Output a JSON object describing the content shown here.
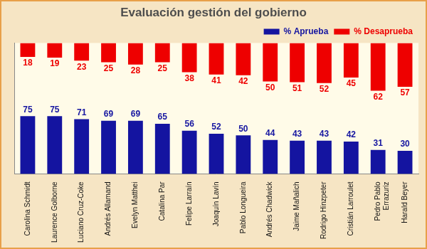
{
  "chart_data": {
    "type": "bar",
    "title": "Evaluación gestión del gobierno",
    "categories": [
      "Carolina Schmidt",
      "Laurence Golborne",
      "Luciano Cruz-Coke",
      "Andrés Allamand",
      "Evelyn Matthei",
      "Catalina Par",
      "Felipe Larraín",
      "Joaquín Lavín",
      "Pablo Longueira",
      "Andrés Chadwick",
      "Jaime Mañalich",
      "Rodrigo Hinzpeter",
      "Cristián Larroulet",
      "Pedro Pablo Errazuriz",
      "Harald Beyer"
    ],
    "series": [
      {
        "name": "% Aprueba",
        "color": "#1414a0",
        "values": [
          75,
          75,
          71,
          69,
          69,
          65,
          56,
          52,
          50,
          44,
          43,
          43,
          42,
          31,
          30
        ]
      },
      {
        "name": "% Desaprueba",
        "color": "#ee0000",
        "axis": "y2",
        "values": [
          18,
          19,
          23,
          25,
          28,
          25,
          38,
          41,
          42,
          50,
          51,
          52,
          45,
          62,
          57
        ]
      }
    ],
    "ylim": [
      0,
      90
    ],
    "y2lim": [
      0,
      80
    ],
    "data_labels": true,
    "tick_labels": "x",
    "legend": "upper right",
    "grid": false
  }
}
